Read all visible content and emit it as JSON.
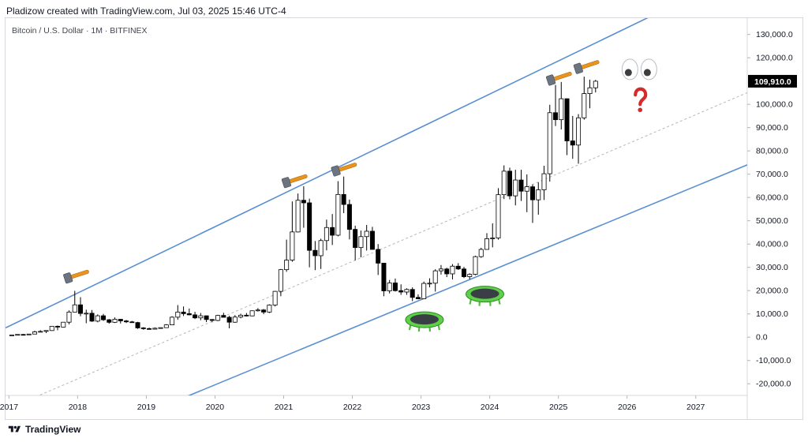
{
  "header": {
    "title": "Pladizow created with TradingView.com, Jul 03, 2025 15:46 UTC-4"
  },
  "chart_header": {
    "symbol": "Bitcoin / U.S. Dollar · 1M · BITFINEX"
  },
  "footer": {
    "brand": "TradingView",
    "logo_icon": "tradingview-logo-icon"
  },
  "colors": {
    "channel": "#5a8fd1",
    "midline": "#b2b5be",
    "candle_up_fill": "#ffffff",
    "candle_down_fill": "#000000",
    "candle_border": "#000000",
    "price_label_bg": "#000000",
    "price_label_text": "#ffffff"
  },
  "annotations": {
    "hammer_icon": "hammer-icon",
    "eyes_icon": "eyes-icon",
    "question_icon": "question-mark-icon",
    "trampoline_icon": "trampoline-icon",
    "hammers": [
      {
        "date": "2017.92",
        "price": 26000
      },
      {
        "date": "2021.10",
        "price": 67000
      },
      {
        "date": "2021.82",
        "price": 72000
      },
      {
        "date": "2024.95",
        "price": 111000
      },
      {
        "date": "2025.35",
        "price": 116000
      }
    ],
    "eyes": {
      "date": "2026.18",
      "price": 115000
    },
    "question": {
      "date": "2026.19",
      "price": 102000
    },
    "trampolines": [
      {
        "date": "2023.05",
        "price": 7500
      },
      {
        "date": "2023.93",
        "price": 18500
      }
    ]
  },
  "chart_data": {
    "type": "candlestick",
    "title": "Bitcoin / U.S. Dollar · 1M · BITFINEX",
    "timeframe": "1M",
    "exchange": "BITFINEX",
    "xlabel": "",
    "ylabel": "",
    "x_range": [
      "2016.95",
      "2027.75"
    ],
    "ylim": [
      -25000,
      137000
    ],
    "grid": false,
    "last_price": "109,910.0",
    "last_price_value": 109910,
    "y_ticks": [
      {
        "value": 130000,
        "label": "130,000.0"
      },
      {
        "value": 120000,
        "label": "120,000.0"
      },
      {
        "value": 100000,
        "label": "100,000.0"
      },
      {
        "value": 90000,
        "label": "90,000.0"
      },
      {
        "value": 80000,
        "label": "80,000.0"
      },
      {
        "value": 70000,
        "label": "70,000.0"
      },
      {
        "value": 60000,
        "label": "60,000.0"
      },
      {
        "value": 50000,
        "label": "50,000.0"
      },
      {
        "value": 40000,
        "label": "40,000.0"
      },
      {
        "value": 30000,
        "label": "30,000.0"
      },
      {
        "value": 20000,
        "label": "20,000.0"
      },
      {
        "value": 10000,
        "label": "10,000.0"
      },
      {
        "value": 0,
        "label": "0.0"
      },
      {
        "value": -10000,
        "label": "-10,000.0"
      },
      {
        "value": -20000,
        "label": "-20,000.0"
      }
    ],
    "x_ticks": [
      {
        "date": "2017.0",
        "label": "2017"
      },
      {
        "date": "2018.0",
        "label": "2018"
      },
      {
        "date": "2019.0",
        "label": "2019"
      },
      {
        "date": "2020.0",
        "label": "2020"
      },
      {
        "date": "2021.0",
        "label": "2021"
      },
      {
        "date": "2022.0",
        "label": "2022"
      },
      {
        "date": "2023.0",
        "label": "2023"
      },
      {
        "date": "2024.0",
        "label": "2024"
      },
      {
        "date": "2025.0",
        "label": "2025"
      },
      {
        "date": "2026.0",
        "label": "2026"
      },
      {
        "date": "2027.0",
        "label": "2027"
      }
    ],
    "channel": {
      "upper": {
        "from": {
          "date": "2016.95",
          "price": 4000
        },
        "to": {
          "date": "2026.50",
          "price": 140000
        }
      },
      "lower": {
        "from": {
          "date": "2019.38",
          "price": -28000
        },
        "to": {
          "date": "2027.75",
          "price": 74000
        }
      },
      "middle": {
        "from": {
          "date": "2017.20",
          "price": -28000
        },
        "to": {
          "date": "2027.75",
          "price": 105000
        }
      }
    },
    "candles": [
      {
        "date": "2017-01",
        "open": 960,
        "high": 1150,
        "low": 760,
        "close": 965
      },
      {
        "date": "2017-02",
        "open": 965,
        "high": 1200,
        "low": 940,
        "close": 1190
      },
      {
        "date": "2017-03",
        "open": 1190,
        "high": 1350,
        "low": 890,
        "close": 1080
      },
      {
        "date": "2017-04",
        "open": 1080,
        "high": 1400,
        "low": 1060,
        "close": 1350
      },
      {
        "date": "2017-05",
        "open": 1350,
        "high": 2800,
        "low": 1350,
        "close": 2300
      },
      {
        "date": "2017-06",
        "open": 2300,
        "high": 3000,
        "low": 2100,
        "close": 2500
      },
      {
        "date": "2017-07",
        "open": 2500,
        "high": 2900,
        "low": 1800,
        "close": 2860
      },
      {
        "date": "2017-08",
        "open": 2860,
        "high": 4700,
        "low": 2700,
        "close": 4700
      },
      {
        "date": "2017-09",
        "open": 4700,
        "high": 5000,
        "low": 3000,
        "close": 4350
      },
      {
        "date": "2017-10",
        "open": 4350,
        "high": 6500,
        "low": 4200,
        "close": 6450
      },
      {
        "date": "2017-11",
        "open": 6450,
        "high": 11500,
        "low": 5500,
        "close": 10800
      },
      {
        "date": "2017-12",
        "open": 10800,
        "high": 19900,
        "low": 10800,
        "close": 13900
      },
      {
        "date": "2018-01",
        "open": 13900,
        "high": 17200,
        "low": 9000,
        "close": 10200
      },
      {
        "date": "2018-02",
        "open": 10200,
        "high": 11800,
        "low": 6000,
        "close": 10300
      },
      {
        "date": "2018-03",
        "open": 10300,
        "high": 11700,
        "low": 6600,
        "close": 6900
      },
      {
        "date": "2018-04",
        "open": 6900,
        "high": 9800,
        "low": 6400,
        "close": 9200
      },
      {
        "date": "2018-05",
        "open": 9200,
        "high": 10000,
        "low": 7000,
        "close": 7500
      },
      {
        "date": "2018-06",
        "open": 7500,
        "high": 7800,
        "low": 5800,
        "close": 6400
      },
      {
        "date": "2018-07",
        "open": 6400,
        "high": 8500,
        "low": 6100,
        "close": 7700
      },
      {
        "date": "2018-08",
        "open": 7700,
        "high": 7800,
        "low": 5900,
        "close": 7000
      },
      {
        "date": "2018-09",
        "open": 7000,
        "high": 7400,
        "low": 6100,
        "close": 6600
      },
      {
        "date": "2018-10",
        "open": 6600,
        "high": 7000,
        "low": 6200,
        "close": 6300
      },
      {
        "date": "2018-11",
        "open": 6300,
        "high": 6600,
        "low": 3600,
        "close": 4000
      },
      {
        "date": "2018-12",
        "open": 4000,
        "high": 4300,
        "low": 3200,
        "close": 3700
      },
      {
        "date": "2019-01",
        "open": 3700,
        "high": 4100,
        "low": 3400,
        "close": 3450
      },
      {
        "date": "2019-02",
        "open": 3450,
        "high": 4200,
        "low": 3400,
        "close": 3850
      },
      {
        "date": "2019-03",
        "open": 3850,
        "high": 4150,
        "low": 3700,
        "close": 4100
      },
      {
        "date": "2019-04",
        "open": 4100,
        "high": 5600,
        "low": 4100,
        "close": 5300
      },
      {
        "date": "2019-05",
        "open": 5300,
        "high": 9000,
        "low": 5300,
        "close": 8600
      },
      {
        "date": "2019-06",
        "open": 8600,
        "high": 13800,
        "low": 7500,
        "close": 10800
      },
      {
        "date": "2019-07",
        "open": 10800,
        "high": 13200,
        "low": 9100,
        "close": 10100
      },
      {
        "date": "2019-08",
        "open": 10100,
        "high": 12300,
        "low": 9400,
        "close": 9600
      },
      {
        "date": "2019-09",
        "open": 9600,
        "high": 10900,
        "low": 7800,
        "close": 8300
      },
      {
        "date": "2019-10",
        "open": 8300,
        "high": 10400,
        "low": 7300,
        "close": 9200
      },
      {
        "date": "2019-11",
        "open": 9200,
        "high": 9300,
        "low": 6500,
        "close": 7600
      },
      {
        "date": "2019-12",
        "open": 7600,
        "high": 7800,
        "low": 6400,
        "close": 7200
      },
      {
        "date": "2020-01",
        "open": 7200,
        "high": 9600,
        "low": 6900,
        "close": 9350
      },
      {
        "date": "2020-02",
        "open": 9350,
        "high": 10500,
        "low": 8500,
        "close": 8550
      },
      {
        "date": "2020-03",
        "open": 8550,
        "high": 9200,
        "low": 3800,
        "close": 6450
      },
      {
        "date": "2020-04",
        "open": 6450,
        "high": 9500,
        "low": 6200,
        "close": 8650
      },
      {
        "date": "2020-05",
        "open": 8650,
        "high": 10100,
        "low": 8100,
        "close": 9450
      },
      {
        "date": "2020-06",
        "open": 9450,
        "high": 10400,
        "low": 8900,
        "close": 9150
      },
      {
        "date": "2020-07",
        "open": 9150,
        "high": 11500,
        "low": 9000,
        "close": 11350
      },
      {
        "date": "2020-08",
        "open": 11350,
        "high": 12500,
        "low": 11000,
        "close": 11700
      },
      {
        "date": "2020-09",
        "open": 11700,
        "high": 12100,
        "low": 9900,
        "close": 10800
      },
      {
        "date": "2020-10",
        "open": 10800,
        "high": 14100,
        "low": 10400,
        "close": 13800
      },
      {
        "date": "2020-11",
        "open": 13800,
        "high": 19900,
        "low": 13200,
        "close": 19700
      },
      {
        "date": "2020-12",
        "open": 19700,
        "high": 29300,
        "low": 17600,
        "close": 29000
      },
      {
        "date": "2021-01",
        "open": 29000,
        "high": 41900,
        "low": 28100,
        "close": 33100
      },
      {
        "date": "2021-02",
        "open": 33100,
        "high": 58300,
        "low": 32400,
        "close": 45200
      },
      {
        "date": "2021-03",
        "open": 45200,
        "high": 61700,
        "low": 45000,
        "close": 58800
      },
      {
        "date": "2021-04",
        "open": 58800,
        "high": 64800,
        "low": 47000,
        "close": 57700
      },
      {
        "date": "2021-05",
        "open": 57700,
        "high": 59500,
        "low": 30000,
        "close": 37300
      },
      {
        "date": "2021-06",
        "open": 37300,
        "high": 41300,
        "low": 28800,
        "close": 35000
      },
      {
        "date": "2021-07",
        "open": 35000,
        "high": 42300,
        "low": 29300,
        "close": 41500
      },
      {
        "date": "2021-08",
        "open": 41500,
        "high": 50500,
        "low": 37300,
        "close": 47100
      },
      {
        "date": "2021-09",
        "open": 47100,
        "high": 52900,
        "low": 39600,
        "close": 43800
      },
      {
        "date": "2021-10",
        "open": 43800,
        "high": 67000,
        "low": 43300,
        "close": 61300
      },
      {
        "date": "2021-11",
        "open": 61300,
        "high": 69000,
        "low": 53300,
        "close": 57000
      },
      {
        "date": "2021-12",
        "open": 57000,
        "high": 59100,
        "low": 42000,
        "close": 46300
      },
      {
        "date": "2022-01",
        "open": 46300,
        "high": 47900,
        "low": 33000,
        "close": 38500
      },
      {
        "date": "2022-02",
        "open": 38500,
        "high": 45800,
        "low": 34300,
        "close": 43200
      },
      {
        "date": "2022-03",
        "open": 43200,
        "high": 48200,
        "low": 37200,
        "close": 45500
      },
      {
        "date": "2022-04",
        "open": 45500,
        "high": 47400,
        "low": 37700,
        "close": 37700
      },
      {
        "date": "2022-05",
        "open": 37700,
        "high": 40000,
        "low": 26700,
        "close": 31800
      },
      {
        "date": "2022-06",
        "open": 31800,
        "high": 31900,
        "low": 17600,
        "close": 19900
      },
      {
        "date": "2022-07",
        "open": 19900,
        "high": 24600,
        "low": 18800,
        "close": 23300
      },
      {
        "date": "2022-08",
        "open": 23300,
        "high": 25200,
        "low": 19600,
        "close": 20000
      },
      {
        "date": "2022-09",
        "open": 20000,
        "high": 22700,
        "low": 18200,
        "close": 19400
      },
      {
        "date": "2022-10",
        "open": 19400,
        "high": 21000,
        "low": 18200,
        "close": 20500
      },
      {
        "date": "2022-11",
        "open": 20500,
        "high": 21400,
        "low": 15500,
        "close": 17100
      },
      {
        "date": "2022-12",
        "open": 17100,
        "high": 18400,
        "low": 16300,
        "close": 16500
      },
      {
        "date": "2023-01",
        "open": 16500,
        "high": 23900,
        "low": 16500,
        "close": 23100
      },
      {
        "date": "2023-02",
        "open": 23100,
        "high": 25300,
        "low": 21400,
        "close": 23200
      },
      {
        "date": "2023-03",
        "open": 23200,
        "high": 29200,
        "low": 19600,
        "close": 28500
      },
      {
        "date": "2023-04",
        "open": 28500,
        "high": 31000,
        "low": 26900,
        "close": 29300
      },
      {
        "date": "2023-05",
        "open": 29300,
        "high": 29800,
        "low": 25800,
        "close": 27200
      },
      {
        "date": "2023-06",
        "open": 27200,
        "high": 31400,
        "low": 24800,
        "close": 30500
      },
      {
        "date": "2023-07",
        "open": 30500,
        "high": 31800,
        "low": 28900,
        "close": 29300
      },
      {
        "date": "2023-08",
        "open": 29300,
        "high": 30200,
        "low": 25400,
        "close": 26000
      },
      {
        "date": "2023-09",
        "open": 26000,
        "high": 27400,
        "low": 24900,
        "close": 27000
      },
      {
        "date": "2023-10",
        "open": 27000,
        "high": 35000,
        "low": 26600,
        "close": 34600
      },
      {
        "date": "2023-11",
        "open": 34600,
        "high": 38400,
        "low": 34100,
        "close": 37700
      },
      {
        "date": "2023-12",
        "open": 37700,
        "high": 44700,
        "low": 37600,
        "close": 42300
      },
      {
        "date": "2024-01",
        "open": 42300,
        "high": 48900,
        "low": 38600,
        "close": 42600
      },
      {
        "date": "2024-02",
        "open": 42600,
        "high": 64000,
        "low": 41900,
        "close": 61200
      },
      {
        "date": "2024-03",
        "open": 61200,
        "high": 73800,
        "low": 59300,
        "close": 71300
      },
      {
        "date": "2024-04",
        "open": 71300,
        "high": 72800,
        "low": 59200,
        "close": 60700
      },
      {
        "date": "2024-05",
        "open": 60700,
        "high": 71900,
        "low": 56600,
        "close": 67500
      },
      {
        "date": "2024-06",
        "open": 67500,
        "high": 71900,
        "low": 58500,
        "close": 62700
      },
      {
        "date": "2024-07",
        "open": 62700,
        "high": 69900,
        "low": 53700,
        "close": 64600
      },
      {
        "date": "2024-08",
        "open": 64600,
        "high": 65600,
        "low": 49100,
        "close": 59000
      },
      {
        "date": "2024-09",
        "open": 59000,
        "high": 66500,
        "low": 52600,
        "close": 63300
      },
      {
        "date": "2024-10",
        "open": 63300,
        "high": 73600,
        "low": 58900,
        "close": 70200
      },
      {
        "date": "2024-11",
        "open": 70200,
        "high": 99800,
        "low": 66800,
        "close": 96400
      },
      {
        "date": "2024-12",
        "open": 96400,
        "high": 108300,
        "low": 90700,
        "close": 93400
      },
      {
        "date": "2025-01",
        "open": 93400,
        "high": 109600,
        "low": 89200,
        "close": 102400
      },
      {
        "date": "2025-02",
        "open": 102400,
        "high": 102500,
        "low": 78200,
        "close": 84300
      },
      {
        "date": "2025-03",
        "open": 84300,
        "high": 95000,
        "low": 76600,
        "close": 82500
      },
      {
        "date": "2025-04",
        "open": 82500,
        "high": 95800,
        "low": 74500,
        "close": 94200
      },
      {
        "date": "2025-05",
        "open": 94200,
        "high": 111900,
        "low": 93400,
        "close": 104600
      },
      {
        "date": "2025-06",
        "open": 104600,
        "high": 110600,
        "low": 98300,
        "close": 107100
      },
      {
        "date": "2025-07",
        "open": 107100,
        "high": 110500,
        "low": 105100,
        "close": 109910
      }
    ]
  }
}
